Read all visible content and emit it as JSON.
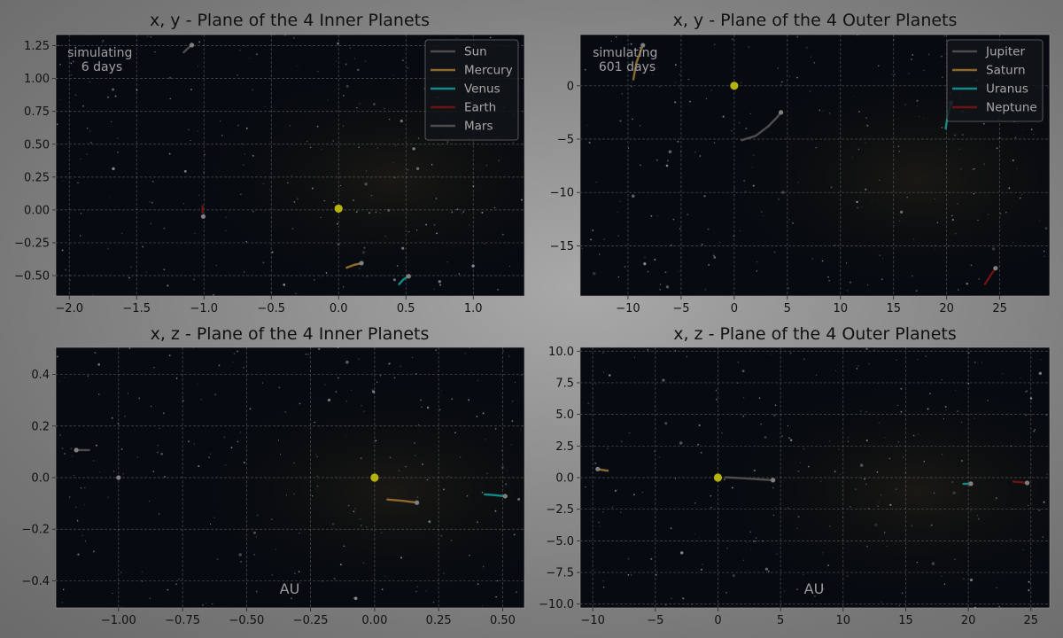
{
  "colors": {
    "Sun": "#4d4d4d",
    "Mercury": "#8c6a2e",
    "Venus": "#138a8a",
    "Earth": "#6e1313",
    "Mars": "#4d4d4d",
    "Jupiter": "#4d4d4d",
    "Saturn": "#8c6a2e",
    "Uranus": "#138a8a",
    "Neptune": "#6e1313",
    "sun_dot": "#b5b30c",
    "grid": "#bdbdbd",
    "plot_bg": "#070b11"
  },
  "chart_data": [
    {
      "type": "line",
      "title": "x, y - Plane of the 4 Inner Planets",
      "xlim": [
        -2.1,
        1.38
      ],
      "ylim": [
        -0.655,
        1.335
      ],
      "xticks": [
        -2.0,
        -1.5,
        -1.0,
        -0.5,
        0.0,
        0.5,
        1.0
      ],
      "yticks": [
        -0.5,
        -0.25,
        0.0,
        0.25,
        0.5,
        0.75,
        1.0,
        1.25
      ],
      "xticklabels": [
        "−2.0",
        "−1.5",
        "−1.0",
        "−0.5",
        "0.0",
        "0.5",
        "1.0"
      ],
      "yticklabels": [
        "−0.50",
        "−0.25",
        "0.00",
        "0.25",
        "0.50",
        "0.75",
        "1.00",
        "1.25"
      ],
      "annotation": "simulating\n6 days",
      "axis_unit": "",
      "legend": [
        "Sun",
        "Mercury",
        "Venus",
        "Earth",
        "Mars"
      ],
      "legend_placement": "top-right",
      "series": [
        {
          "name": "Mercury",
          "points": [
            [
              0.06,
              -0.44
            ],
            [
              0.11,
              -0.42
            ],
            [
              0.17,
              -0.405
            ]
          ],
          "marker": true
        },
        {
          "name": "Venus",
          "points": [
            [
              0.45,
              -0.565
            ],
            [
              0.48,
              -0.53
            ],
            [
              0.52,
              -0.505
            ]
          ],
          "marker": true
        },
        {
          "name": "Earth",
          "points": [
            [
              -1.01,
              0.03
            ],
            [
              -1.01,
              0.005
            ],
            [
              -1.01,
              -0.02
            ]
          ],
          "marker": false
        },
        {
          "name": "Mars",
          "points": [
            [
              -1.15,
              1.2
            ],
            [
              -1.12,
              1.23
            ],
            [
              -1.09,
              1.255
            ]
          ],
          "marker": true
        },
        {
          "name": "Mars",
          "points": [
            [
              -1.005,
              -0.05
            ]
          ],
          "marker": true
        }
      ],
      "sun": [
        0.0,
        0.01
      ]
    },
    {
      "type": "line",
      "title": "x, y - Plane of the 4 Outer Planets",
      "xlim": [
        -14.5,
        29.7
      ],
      "ylim": [
        -19.7,
        4.8
      ],
      "xticks": [
        -10,
        -5,
        0,
        5,
        10,
        15,
        20,
        25
      ],
      "yticks": [
        -15,
        -10,
        -5,
        0
      ],
      "xticklabels": [
        "−10",
        "−5",
        "0",
        "5",
        "10",
        "15",
        "20",
        "25"
      ],
      "yticklabels": [
        "−15",
        "−10",
        "−5",
        "0"
      ],
      "annotation": "simulating\n601 days",
      "axis_unit": "",
      "legend": [
        "Jupiter",
        "Saturn",
        "Uranus",
        "Neptune"
      ],
      "legend_placement": "top-right",
      "series": [
        {
          "name": "Jupiter",
          "points": [
            [
              0.7,
              -5.1
            ],
            [
              2.0,
              -4.7
            ],
            [
              3.2,
              -3.8
            ],
            [
              4.0,
              -3.0
            ],
            [
              4.4,
              -2.5
            ]
          ],
          "marker": true
        },
        {
          "name": "Saturn",
          "points": [
            [
              -9.5,
              0.6
            ],
            [
              -9.2,
              2.2
            ],
            [
              -8.6,
              3.8
            ]
          ],
          "marker": true
        },
        {
          "name": "Uranus",
          "points": [
            [
              19.9,
              -4.0
            ],
            [
              20.1,
              -2.8
            ],
            [
              20.4,
              -1.6
            ]
          ],
          "marker": true
        },
        {
          "name": "Neptune",
          "points": [
            [
              23.6,
              -18.6
            ],
            [
              24.1,
              -17.8
            ],
            [
              24.6,
              -17.1
            ]
          ],
          "marker": true
        }
      ],
      "sun": [
        0.0,
        0.0
      ]
    },
    {
      "type": "line",
      "title": "x, z - Plane of the 4 Inner Planets",
      "xlim": [
        -1.245,
        0.585
      ],
      "ylim": [
        -0.505,
        0.505
      ],
      "xticks": [
        -1.0,
        -0.75,
        -0.5,
        -0.25,
        0.0,
        0.25,
        0.5
      ],
      "yticks": [
        -0.4,
        -0.2,
        0.0,
        0.2,
        0.4
      ],
      "xticklabels": [
        "−1.00",
        "−0.75",
        "−0.50",
        "−0.25",
        "0.00",
        "0.25",
        "0.50"
      ],
      "yticklabels": [
        "−0.4",
        "−0.2",
        "0.0",
        "0.2",
        "0.4"
      ],
      "annotation": "",
      "axis_unit": "AU",
      "legend": [],
      "legend_placement": "",
      "series": [
        {
          "name": "Mercury",
          "points": [
            [
              0.05,
              -0.085
            ],
            [
              0.11,
              -0.09
            ],
            [
              0.165,
              -0.097
            ]
          ],
          "marker": true
        },
        {
          "name": "Venus",
          "points": [
            [
              0.43,
              -0.065
            ],
            [
              0.47,
              -0.068
            ],
            [
              0.51,
              -0.072
            ]
          ],
          "marker": true
        },
        {
          "name": "Mars",
          "points": [
            [
              -1.115,
              0.107
            ],
            [
              -1.14,
              0.107
            ],
            [
              -1.165,
              0.107
            ]
          ],
          "marker": true
        },
        {
          "name": "Earth",
          "points": [
            [
              -1.0,
              0.0
            ]
          ],
          "marker": true
        }
      ],
      "sun": [
        0.0,
        0.0
      ]
    },
    {
      "type": "line",
      "title": "x, z - Plane of the 4 Outer Planets",
      "xlim": [
        -11.0,
        26.5
      ],
      "ylim": [
        -10.3,
        10.3
      ],
      "xticks": [
        -10,
        -5,
        0,
        5,
        10,
        15,
        20,
        25
      ],
      "yticks": [
        -10.0,
        -7.5,
        -5.0,
        -2.5,
        0.0,
        2.5,
        5.0,
        7.5,
        10.0
      ],
      "xticklabels": [
        "−10",
        "−5",
        "0",
        "5",
        "10",
        "15",
        "20",
        "25"
      ],
      "yticklabels": [
        "−10.0",
        "−7.5",
        "−5.0",
        "−2.5",
        "0.0",
        "2.5",
        "5.0",
        "7.5",
        "10.0"
      ],
      "annotation": "",
      "axis_unit": "AU",
      "legend": [],
      "legend_placement": "",
      "series": [
        {
          "name": "Jupiter",
          "points": [
            [
              0.6,
              0.02
            ],
            [
              2.0,
              -0.05
            ],
            [
              3.4,
              -0.14
            ],
            [
              4.4,
              -0.2
            ]
          ],
          "marker": true
        },
        {
          "name": "Saturn",
          "points": [
            [
              -8.8,
              0.55
            ],
            [
              -9.3,
              0.62
            ],
            [
              -9.6,
              0.68
            ]
          ],
          "marker": true
        },
        {
          "name": "Uranus",
          "points": [
            [
              19.6,
              -0.5
            ],
            [
              19.9,
              -0.49
            ],
            [
              20.2,
              -0.48
            ]
          ],
          "marker": true
        },
        {
          "name": "Neptune",
          "points": [
            [
              23.6,
              -0.32
            ],
            [
              24.1,
              -0.36
            ],
            [
              24.7,
              -0.42
            ]
          ],
          "marker": true
        }
      ],
      "sun": [
        0.0,
        0.0
      ]
    }
  ]
}
